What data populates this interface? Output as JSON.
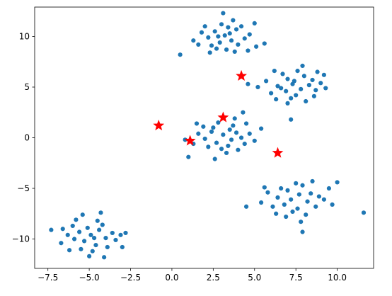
{
  "chart_data": {
    "type": "scatter",
    "title": "",
    "xlabel": "",
    "ylabel": "",
    "xlim": [
      -8.3,
      12.2
    ],
    "ylim": [
      -12.9,
      12.9
    ],
    "grid": false,
    "xticks": [
      -7.5,
      -5.0,
      -2.5,
      0.0,
      2.5,
      5.0,
      7.5,
      10.0
    ],
    "xtick_labels": [
      "−7.5",
      "−5.0",
      "−2.5",
      "0.0",
      "2.5",
      "5.0",
      "7.5",
      "10.0"
    ],
    "yticks": [
      -10,
      -5,
      0,
      5,
      10
    ],
    "ytick_labels": [
      "−10",
      "−5",
      "0",
      "5",
      "10"
    ],
    "series": [
      {
        "marker": "circle",
        "color": "#1f77b4",
        "points": [
          [
            3.0,
            11.2
          ],
          [
            3.4,
            10.9
          ],
          [
            2.6,
            10.5
          ],
          [
            3.9,
            10.7
          ],
          [
            3.2,
            10.1
          ],
          [
            2.2,
            9.9
          ],
          [
            4.4,
            9.8
          ],
          [
            3.6,
            9.6
          ],
          [
            2.9,
            9.4
          ],
          [
            4.0,
            9.2
          ],
          [
            2.4,
            9.1
          ],
          [
            1.8,
            10.4
          ],
          [
            4.7,
            10.2
          ],
          [
            3.3,
            8.7
          ],
          [
            2.7,
            8.8
          ],
          [
            5.1,
            9.0
          ],
          [
            1.3,
            9.6
          ],
          [
            4.6,
            8.6
          ],
          [
            3.7,
            11.6
          ],
          [
            2.0,
            11.0
          ],
          [
            5.0,
            11.3
          ],
          [
            0.5,
            8.2
          ],
          [
            5.6,
            9.3
          ],
          [
            3.1,
            12.3
          ],
          [
            2.3,
            8.4
          ],
          [
            3.8,
            8.5
          ],
          [
            1.6,
            9.2
          ],
          [
            4.2,
            11.0
          ],
          [
            2.8,
            10.0
          ],
          [
            3.5,
            10.3
          ],
          [
            7.3,
            5.3
          ],
          [
            7.8,
            4.8
          ],
          [
            6.9,
            4.6
          ],
          [
            8.3,
            5.2
          ],
          [
            7.0,
            5.8
          ],
          [
            7.5,
            4.2
          ],
          [
            8.0,
            6.1
          ],
          [
            6.4,
            5.1
          ],
          [
            8.7,
            4.7
          ],
          [
            7.2,
            3.9
          ],
          [
            6.7,
            6.3
          ],
          [
            8.5,
            5.7
          ],
          [
            7.6,
            6.6
          ],
          [
            6.0,
            4.4
          ],
          [
            9.0,
            5.4
          ],
          [
            8.1,
            3.6
          ],
          [
            7.0,
            3.4
          ],
          [
            5.7,
            5.6
          ],
          [
            9.2,
            6.2
          ],
          [
            6.3,
            3.8
          ],
          [
            7.9,
            7.1
          ],
          [
            5.2,
            5.0
          ],
          [
            9.3,
            4.9
          ],
          [
            8.6,
            4.1
          ],
          [
            6.6,
            4.9
          ],
          [
            7.4,
            5.6
          ],
          [
            4.6,
            5.3
          ],
          [
            7.2,
            1.8
          ],
          [
            8.8,
            6.5
          ],
          [
            6.2,
            6.6
          ],
          [
            3.1,
            0.3
          ],
          [
            3.6,
            -0.2
          ],
          [
            2.7,
            -0.5
          ],
          [
            3.9,
            0.5
          ],
          [
            2.4,
            0.6
          ],
          [
            3.4,
            -0.8
          ],
          [
            2.0,
            -0.1
          ],
          [
            4.2,
            0.0
          ],
          [
            3.0,
            -1.1
          ],
          [
            2.5,
            1.0
          ],
          [
            4.4,
            -0.6
          ],
          [
            1.6,
            0.4
          ],
          [
            3.7,
            1.2
          ],
          [
            2.2,
            -0.9
          ],
          [
            4.7,
            0.4
          ],
          [
            3.3,
            -1.5
          ],
          [
            1.9,
            1.1
          ],
          [
            4.0,
            -1.2
          ],
          [
            1.3,
            -0.6
          ],
          [
            5.0,
            -0.3
          ],
          [
            2.8,
            1.5
          ],
          [
            3.5,
            0.8
          ],
          [
            1.0,
            -1.9
          ],
          [
            2.6,
            -2.1
          ],
          [
            4.5,
            1.4
          ],
          [
            5.4,
            0.9
          ],
          [
            1.5,
            1.4
          ],
          [
            3.8,
            1.9
          ],
          [
            0.8,
            -0.2
          ],
          [
            4.3,
            2.5
          ],
          [
            7.2,
            -6.1
          ],
          [
            7.7,
            -5.6
          ],
          [
            6.8,
            -6.6
          ],
          [
            8.2,
            -6.3
          ],
          [
            7.0,
            -5.2
          ],
          [
            7.6,
            -7.0
          ],
          [
            8.4,
            -5.5
          ],
          [
            6.4,
            -5.9
          ],
          [
            8.7,
            -6.8
          ],
          [
            7.3,
            -7.3
          ],
          [
            6.6,
            -5.0
          ],
          [
            8.9,
            -5.8
          ],
          [
            7.9,
            -4.7
          ],
          [
            6.1,
            -6.8
          ],
          [
            9.2,
            -6.1
          ],
          [
            8.1,
            -7.6
          ],
          [
            6.9,
            -7.8
          ],
          [
            5.8,
            -5.4
          ],
          [
            9.5,
            -5.0
          ],
          [
            6.3,
            -7.5
          ],
          [
            8.5,
            -4.3
          ],
          [
            5.4,
            -6.4
          ],
          [
            9.7,
            -6.6
          ],
          [
            7.8,
            -8.3
          ],
          [
            5.6,
            -4.9
          ],
          [
            7.5,
            -4.5
          ],
          [
            10.0,
            -4.4
          ],
          [
            4.5,
            -6.8
          ],
          [
            7.9,
            -9.3
          ],
          [
            11.6,
            -7.4
          ],
          [
            -4.9,
            -9.6
          ],
          [
            -4.4,
            -9.1
          ],
          [
            -5.3,
            -10.2
          ],
          [
            -4.0,
            -9.9
          ],
          [
            -5.6,
            -9.3
          ],
          [
            -4.6,
            -10.6
          ],
          [
            -3.6,
            -9.4
          ],
          [
            -5.9,
            -10.0
          ],
          [
            -4.2,
            -8.6
          ],
          [
            -5.1,
            -8.9
          ],
          [
            -3.9,
            -10.8
          ],
          [
            -6.3,
            -9.6
          ],
          [
            -4.8,
            -11.2
          ],
          [
            -3.4,
            -10.1
          ],
          [
            -5.5,
            -11.0
          ],
          [
            -4.5,
            -8.2
          ],
          [
            -6.0,
            -8.7
          ],
          [
            -3.1,
            -9.6
          ],
          [
            -5.0,
            -11.7
          ],
          [
            -6.7,
            -10.4
          ],
          [
            -4.3,
            -7.4
          ],
          [
            -3.0,
            -10.8
          ],
          [
            -5.8,
            -8.1
          ],
          [
            -6.6,
            -9.0
          ],
          [
            -4.1,
            -11.8
          ],
          [
            -7.3,
            -9.1
          ],
          [
            -2.8,
            -9.4
          ],
          [
            -5.4,
            -7.6
          ],
          [
            -6.2,
            -11.1
          ],
          [
            -4.7,
            -9.9
          ]
        ]
      },
      {
        "marker": "star",
        "color": "#ff0000",
        "points": [
          [
            4.2,
            6.1
          ],
          [
            3.1,
            2.0
          ],
          [
            -0.8,
            1.2
          ],
          [
            1.1,
            -0.3
          ],
          [
            6.4,
            -1.5
          ]
        ]
      }
    ]
  }
}
